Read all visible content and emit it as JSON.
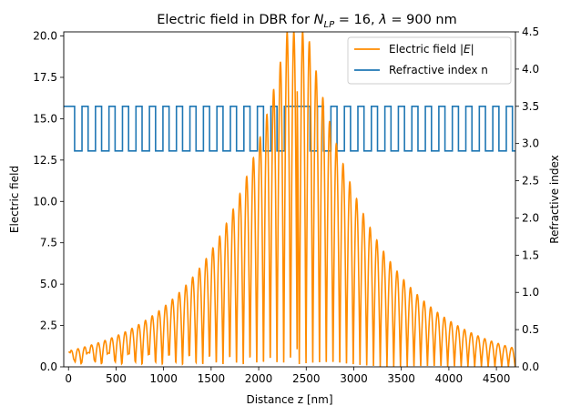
{
  "chart_data": {
    "type": "line",
    "title_parts": {
      "prefix": "Electric field in DBR for ",
      "symbol_n": "N",
      "subscript": "LP",
      "middle": " = 16, ",
      "symbol_lambda": "λ",
      "suffix": " = 900 nm"
    },
    "xlabel": "Distance z [nm]",
    "ylabel_left": "Electric field",
    "ylabel_right": "Refractive index",
    "xlim": [
      -50,
      4700
    ],
    "ylim_left": [
      0,
      20.25
    ],
    "ylim_right": [
      0,
      4.5
    ],
    "xticks": [
      "0",
      "500",
      "1000",
      "1500",
      "2000",
      "2500",
      "3000",
      "3500",
      "4000",
      "4500"
    ],
    "yticks_left": [
      "0.0",
      "2.5",
      "5.0",
      "7.5",
      "10.0",
      "12.5",
      "15.0",
      "17.5",
      "20.0"
    ],
    "yticks_right": [
      "0.0",
      "0.5",
      "1.0",
      "1.5",
      "2.0",
      "2.5",
      "3.0",
      "3.5",
      "4.0",
      "4.5"
    ],
    "legend": {
      "placement": "upper-right",
      "entries": [
        {
          "label_prefix": "Electric field ",
          "label_math": "|E|",
          "color": "#ff8c00"
        },
        {
          "label_prefix": "Refractive index n",
          "label_math": "",
          "color": "#1f77b4"
        }
      ]
    },
    "series": [
      {
        "axis": "left",
        "color": "#ff8c00",
        "structure": {
          "layer_pairs_each_side": 16,
          "high_index_thickness_nm": 64.29,
          "low_index_thickness_nm": 77.59,
          "cavity_start_nm": 2270,
          "cavity_end_nm": 2540,
          "max_value": 20.25,
          "min_envelope_value": 0.9,
          "growth_per_pair": 1.207
        }
      },
      {
        "axis": "right",
        "color": "#1f77b4",
        "high_index": 3.5,
        "low_index": 2.9,
        "cavity_index": 3.5
      }
    ]
  }
}
